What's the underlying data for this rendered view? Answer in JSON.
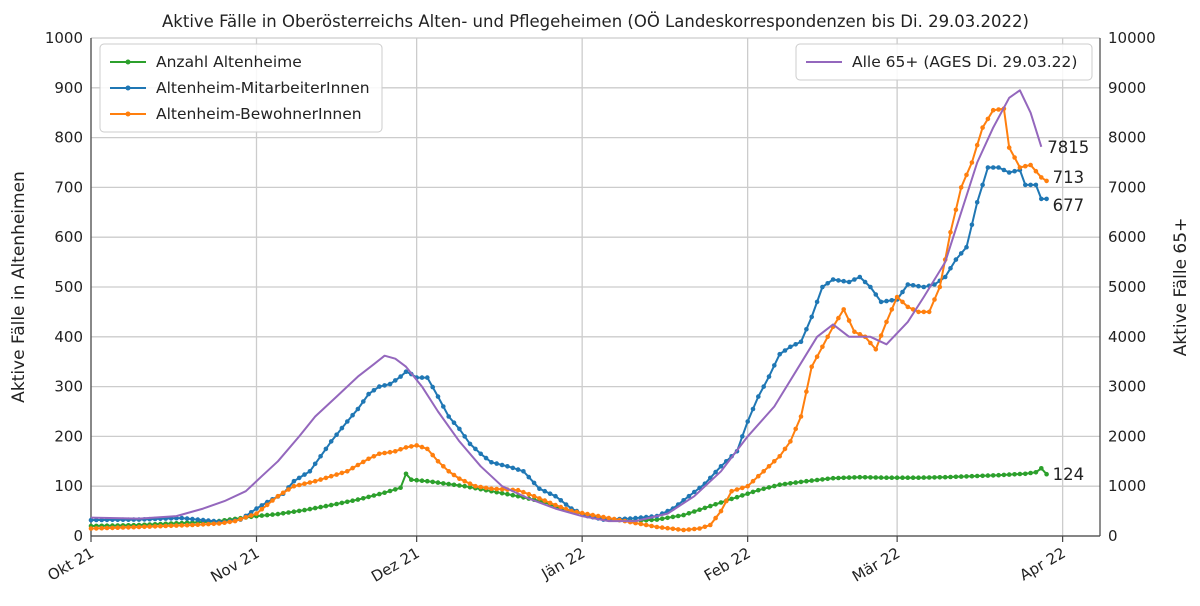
{
  "chart_data": {
    "type": "line",
    "title": "Aktive Fälle in Oberösterreichs Alten- und Pflegeheimen (OÖ Landeskorrespondenzen bis Di. 29.03.2022)",
    "ylabel_left": "Aktive Fälle in Altenheimen",
    "ylabel_right": "Aktive Fälle 65+",
    "ylim_left": [
      0,
      1000
    ],
    "ylim_right": [
      0,
      10000
    ],
    "yticks_left": [
      0,
      100,
      200,
      300,
      400,
      500,
      600,
      700,
      800,
      900,
      1000
    ],
    "yticks_right": [
      0,
      1000,
      2000,
      3000,
      4000,
      5000,
      6000,
      7000,
      8000,
      9000,
      10000
    ],
    "xlim": [
      "2021-10-01",
      "2022-04-08"
    ],
    "xticks": [
      {
        "date": "2021-10-01",
        "label": "Okt 21"
      },
      {
        "date": "2021-11-01",
        "label": "Nov 21"
      },
      {
        "date": "2021-12-01",
        "label": "Dez 21"
      },
      {
        "date": "2022-01-01",
        "label": "Jän 22"
      },
      {
        "date": "2022-02-01",
        "label": "Feb 22"
      },
      {
        "date": "2022-03-01",
        "label": "Mär 22"
      },
      {
        "date": "2022-04-01",
        "label": "Apr 22"
      }
    ],
    "grid": true,
    "legend_left_position": "top-left",
    "legend_right_position": "top-right",
    "series": [
      {
        "name": "Anzahl Altenheime",
        "axis": "left",
        "color": "#2ca02c",
        "markers": true,
        "end_label": "124",
        "points": [
          [
            "2021-10-01",
            20
          ],
          [
            "2021-10-10",
            22
          ],
          [
            "2021-10-20",
            27
          ],
          [
            "2021-10-25",
            30
          ],
          [
            "2021-11-01",
            40
          ],
          [
            "2021-11-05",
            44
          ],
          [
            "2021-11-10",
            52
          ],
          [
            "2021-11-15",
            62
          ],
          [
            "2021-11-20",
            73
          ],
          [
            "2021-11-25",
            87
          ],
          [
            "2021-11-28",
            97
          ],
          [
            "2021-11-29",
            125
          ],
          [
            "2021-11-30",
            113
          ],
          [
            "2021-12-03",
            110
          ],
          [
            "2021-12-10",
            100
          ],
          [
            "2021-12-15",
            90
          ],
          [
            "2021-12-20",
            80
          ],
          [
            "2021-12-25",
            68
          ],
          [
            "2021-12-28",
            55
          ],
          [
            "2022-01-01",
            45
          ],
          [
            "2022-01-05",
            35
          ],
          [
            "2022-01-10",
            30
          ],
          [
            "2022-01-15",
            33
          ],
          [
            "2022-01-20",
            42
          ],
          [
            "2022-01-25",
            60
          ],
          [
            "2022-01-30",
            78
          ],
          [
            "2022-02-03",
            92
          ],
          [
            "2022-02-07",
            103
          ],
          [
            "2022-02-12",
            110
          ],
          [
            "2022-02-17",
            116
          ],
          [
            "2022-02-22",
            118
          ],
          [
            "2022-02-28",
            117
          ],
          [
            "2022-03-05",
            117
          ],
          [
            "2022-03-10",
            118
          ],
          [
            "2022-03-15",
            120
          ],
          [
            "2022-03-20",
            122
          ],
          [
            "2022-03-25",
            125
          ],
          [
            "2022-03-27",
            128
          ],
          [
            "2022-03-28",
            136
          ],
          [
            "2022-03-29",
            124
          ]
        ]
      },
      {
        "name": "Altenheim-MitarbeiterInnen",
        "axis": "left",
        "color": "#1f77b4",
        "markers": true,
        "end_label": "677",
        "points": [
          [
            "2021-10-01",
            32
          ],
          [
            "2021-10-10",
            33
          ],
          [
            "2021-10-15",
            35
          ],
          [
            "2021-10-18",
            36
          ],
          [
            "2021-10-22",
            32
          ],
          [
            "2021-10-26",
            28
          ],
          [
            "2021-10-29",
            33
          ],
          [
            "2021-11-01",
            55
          ],
          [
            "2021-11-03",
            68
          ],
          [
            "2021-11-06",
            85
          ],
          [
            "2021-11-08",
            110
          ],
          [
            "2021-11-11",
            130
          ],
          [
            "2021-11-13",
            160
          ],
          [
            "2021-11-15",
            190
          ],
          [
            "2021-11-18",
            230
          ],
          [
            "2021-11-20",
            255
          ],
          [
            "2021-11-22",
            285
          ],
          [
            "2021-11-24",
            300
          ],
          [
            "2021-11-26",
            305
          ],
          [
            "2021-11-28",
            320
          ],
          [
            "2021-11-29",
            330
          ],
          [
            "2021-11-30",
            325
          ],
          [
            "2021-12-01",
            318
          ],
          [
            "2021-12-03",
            318
          ],
          [
            "2021-12-05",
            280
          ],
          [
            "2021-12-07",
            240
          ],
          [
            "2021-12-09",
            215
          ],
          [
            "2021-12-11",
            185
          ],
          [
            "2021-12-13",
            165
          ],
          [
            "2021-12-15",
            148
          ],
          [
            "2021-12-18",
            140
          ],
          [
            "2021-12-21",
            130
          ],
          [
            "2021-12-24",
            95
          ],
          [
            "2021-12-27",
            80
          ],
          [
            "2021-12-30",
            55
          ],
          [
            "2022-01-02",
            40
          ],
          [
            "2022-01-05",
            33
          ],
          [
            "2022-01-10",
            35
          ],
          [
            "2022-01-15",
            40
          ],
          [
            "2022-01-18",
            55
          ],
          [
            "2022-01-21",
            80
          ],
          [
            "2022-01-24",
            105
          ],
          [
            "2022-01-27",
            140
          ],
          [
            "2022-01-30",
            170
          ],
          [
            "2022-02-01",
            230
          ],
          [
            "2022-02-03",
            280
          ],
          [
            "2022-02-05",
            320
          ],
          [
            "2022-02-07",
            365
          ],
          [
            "2022-02-09",
            380
          ],
          [
            "2022-02-11",
            390
          ],
          [
            "2022-02-13",
            440
          ],
          [
            "2022-02-15",
            500
          ],
          [
            "2022-02-17",
            515
          ],
          [
            "2022-02-20",
            510
          ],
          [
            "2022-02-22",
            520
          ],
          [
            "2022-02-24",
            500
          ],
          [
            "2022-02-26",
            470
          ],
          [
            "2022-03-01",
            475
          ],
          [
            "2022-03-03",
            505
          ],
          [
            "2022-03-06",
            500
          ],
          [
            "2022-03-08",
            505
          ],
          [
            "2022-03-10",
            520
          ],
          [
            "2022-03-12",
            555
          ],
          [
            "2022-03-14",
            580
          ],
          [
            "2022-03-16",
            670
          ],
          [
            "2022-03-18",
            740
          ],
          [
            "2022-03-20",
            740
          ],
          [
            "2022-03-22",
            730
          ],
          [
            "2022-03-24",
            735
          ],
          [
            "2022-03-25",
            705
          ],
          [
            "2022-03-27",
            705
          ],
          [
            "2022-03-28",
            677
          ],
          [
            "2022-03-29",
            677
          ]
        ]
      },
      {
        "name": "Altenheim-BewohnerInnen",
        "axis": "left",
        "color": "#ff7f0e",
        "markers": true,
        "end_label": "713",
        "points": [
          [
            "2021-10-01",
            15
          ],
          [
            "2021-10-10",
            18
          ],
          [
            "2021-10-20",
            22
          ],
          [
            "2021-10-25",
            25
          ],
          [
            "2021-10-28",
            30
          ],
          [
            "2021-11-01",
            45
          ],
          [
            "2021-11-05",
            80
          ],
          [
            "2021-11-08",
            100
          ],
          [
            "2021-11-12",
            110
          ],
          [
            "2021-11-15",
            120
          ],
          [
            "2021-11-18",
            130
          ],
          [
            "2021-11-22",
            155
          ],
          [
            "2021-11-24",
            165
          ],
          [
            "2021-11-27",
            170
          ],
          [
            "2021-11-29",
            178
          ],
          [
            "2021-12-01",
            182
          ],
          [
            "2021-12-03",
            175
          ],
          [
            "2021-12-05",
            150
          ],
          [
            "2021-12-07",
            130
          ],
          [
            "2021-12-09",
            115
          ],
          [
            "2021-12-12",
            100
          ],
          [
            "2021-12-15",
            95
          ],
          [
            "2021-12-20",
            92
          ],
          [
            "2021-12-23",
            80
          ],
          [
            "2021-12-27",
            62
          ],
          [
            "2021-12-30",
            50
          ],
          [
            "2022-01-05",
            38
          ],
          [
            "2022-01-10",
            28
          ],
          [
            "2022-01-15",
            18
          ],
          [
            "2022-01-20",
            12
          ],
          [
            "2022-01-23",
            15
          ],
          [
            "2022-01-25",
            22
          ],
          [
            "2022-01-27",
            50
          ],
          [
            "2022-01-29",
            90
          ],
          [
            "2022-02-01",
            100
          ],
          [
            "2022-02-03",
            120
          ],
          [
            "2022-02-05",
            140
          ],
          [
            "2022-02-07",
            160
          ],
          [
            "2022-02-09",
            190
          ],
          [
            "2022-02-11",
            240
          ],
          [
            "2022-02-13",
            340
          ],
          [
            "2022-02-15",
            380
          ],
          [
            "2022-02-17",
            420
          ],
          [
            "2022-02-19",
            455
          ],
          [
            "2022-02-21",
            410
          ],
          [
            "2022-02-23",
            400
          ],
          [
            "2022-02-25",
            375
          ],
          [
            "2022-02-27",
            430
          ],
          [
            "2022-03-01",
            480
          ],
          [
            "2022-03-03",
            460
          ],
          [
            "2022-03-05",
            450
          ],
          [
            "2022-03-07",
            450
          ],
          [
            "2022-03-09",
            500
          ],
          [
            "2022-03-11",
            610
          ],
          [
            "2022-03-13",
            700
          ],
          [
            "2022-03-15",
            750
          ],
          [
            "2022-03-17",
            820
          ],
          [
            "2022-03-19",
            855
          ],
          [
            "2022-03-21",
            858
          ],
          [
            "2022-03-22",
            780
          ],
          [
            "2022-03-24",
            740
          ],
          [
            "2022-03-26",
            745
          ],
          [
            "2022-03-28",
            720
          ],
          [
            "2022-03-29",
            713
          ]
        ]
      },
      {
        "name": "Alle 65+ (AGES Di. 29.03.22)",
        "axis": "right",
        "color": "#9467bd",
        "markers": false,
        "end_label": "7815",
        "points": [
          [
            "2021-10-01",
            370
          ],
          [
            "2021-10-10",
            350
          ],
          [
            "2021-10-17",
            400
          ],
          [
            "2021-10-22",
            550
          ],
          [
            "2021-10-26",
            700
          ],
          [
            "2021-10-30",
            900
          ],
          [
            "2021-11-02",
            1200
          ],
          [
            "2021-11-05",
            1500
          ],
          [
            "2021-11-09",
            2000
          ],
          [
            "2021-11-12",
            2400
          ],
          [
            "2021-11-16",
            2800
          ],
          [
            "2021-11-20",
            3200
          ],
          [
            "2021-11-23",
            3450
          ],
          [
            "2021-11-25",
            3620
          ],
          [
            "2021-11-27",
            3560
          ],
          [
            "2021-11-29",
            3400
          ],
          [
            "2021-12-02",
            3000
          ],
          [
            "2021-12-05",
            2500
          ],
          [
            "2021-12-09",
            1900
          ],
          [
            "2021-12-13",
            1400
          ],
          [
            "2021-12-17",
            1000
          ],
          [
            "2021-12-22",
            750
          ],
          [
            "2021-12-27",
            550
          ],
          [
            "2022-01-01",
            400
          ],
          [
            "2022-01-06",
            300
          ],
          [
            "2022-01-11",
            300
          ],
          [
            "2022-01-17",
            450
          ],
          [
            "2022-01-22",
            800
          ],
          [
            "2022-01-27",
            1300
          ],
          [
            "2022-02-01",
            2000
          ],
          [
            "2022-02-06",
            2600
          ],
          [
            "2022-02-10",
            3300
          ],
          [
            "2022-02-14",
            4000
          ],
          [
            "2022-02-17",
            4250
          ],
          [
            "2022-02-20",
            4000
          ],
          [
            "2022-02-24",
            4000
          ],
          [
            "2022-02-27",
            3850
          ],
          [
            "2022-03-03",
            4300
          ],
          [
            "2022-03-06",
            4800
          ],
          [
            "2022-03-10",
            5500
          ],
          [
            "2022-03-13",
            6500
          ],
          [
            "2022-03-16",
            7500
          ],
          [
            "2022-03-19",
            8200
          ],
          [
            "2022-03-22",
            8800
          ],
          [
            "2022-03-24",
            8950
          ],
          [
            "2022-03-26",
            8500
          ],
          [
            "2022-03-28",
            7815
          ]
        ]
      }
    ]
  }
}
